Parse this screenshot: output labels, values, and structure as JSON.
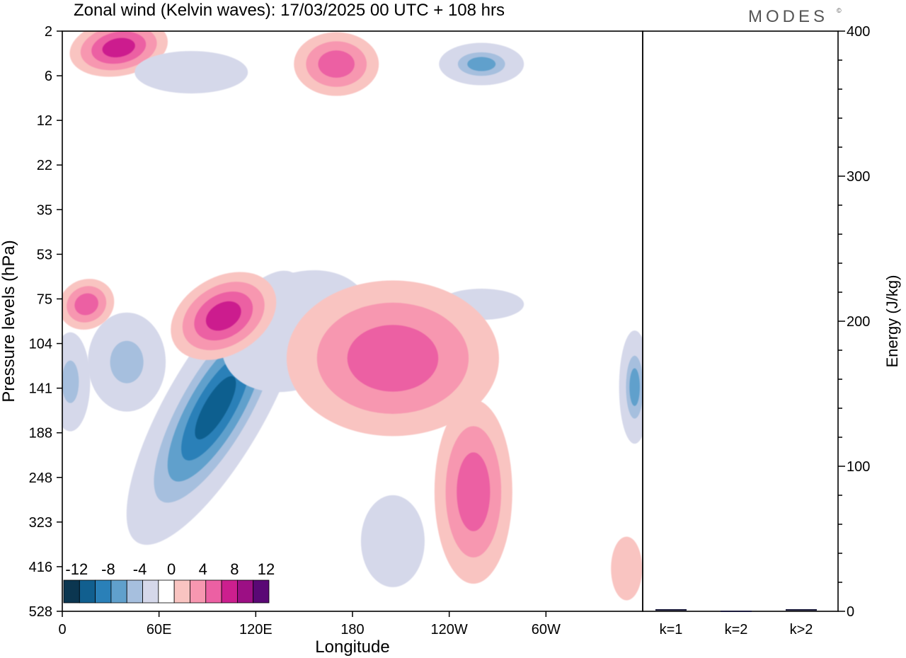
{
  "title": "Zonal wind (Kelvin waves):  17/03/2025  00 UTC  + 108 hrs",
  "brand": "MODES",
  "brand_mark": "©",
  "chart_data": [
    {
      "type": "heatmap",
      "xlabel": "Longitude",
      "ylabel": "Pressure levels (hPa)",
      "x_ticks": [
        "0",
        "60E",
        "120E",
        "180",
        "120W",
        "60W"
      ],
      "x_tick_values": [
        0,
        60,
        120,
        180,
        240,
        300
      ],
      "xlim": [
        0,
        360
      ],
      "y_ticks": [
        "2",
        "6",
        "12",
        "22",
        "35",
        "53",
        "75",
        "104",
        "141",
        "188",
        "248",
        "323",
        "416",
        "528"
      ],
      "y_scale": "log",
      "colorbar": {
        "labels": [
          "-12",
          "-8",
          "-4",
          "0",
          "4",
          "8",
          "12"
        ],
        "levels": [
          -12,
          -10,
          -8,
          -6,
          -4,
          -2,
          2,
          4,
          6,
          8,
          10,
          12
        ],
        "colors": [
          "#0b3650",
          "#115f8f",
          "#2a80b8",
          "#60a0cc",
          "#a6bfde",
          "#d5d8ea",
          "#ffffff",
          "#f9c4c1",
          "#f797b0",
          "#ec60a3",
          "#cc1f8e",
          "#9c0f84",
          "#5a0875"
        ]
      },
      "blobs": [
        {
          "lon": 95,
          "p": 160,
          "value": -12
        },
        {
          "lon": 40,
          "p": 118,
          "value": -6
        },
        {
          "lon": 5,
          "p": 135,
          "value": -6
        },
        {
          "lon": 145,
          "p": 95,
          "value": -4
        },
        {
          "lon": 260,
          "p": 78,
          "value": -2
        },
        {
          "lon": 355,
          "p": 140,
          "value": -8
        },
        {
          "lon": 205,
          "p": 115,
          "value": 6
        },
        {
          "lon": 255,
          "p": 270,
          "value": 6
        },
        {
          "lon": 100,
          "p": 85,
          "value": 8
        },
        {
          "lon": 15,
          "p": 78,
          "value": 6
        },
        {
          "lon": 35,
          "p": 3,
          "value": 8
        },
        {
          "lon": 170,
          "p": 4.5,
          "value": 6
        },
        {
          "lon": 260,
          "p": 4.5,
          "value": -8
        },
        {
          "lon": 80,
          "p": 5.5,
          "value": -4
        },
        {
          "lon": 350,
          "p": 420,
          "value": 2
        },
        {
          "lon": 205,
          "p": 360,
          "value": -4
        }
      ]
    },
    {
      "type": "bar",
      "ylabel": "Energy (J/kg)",
      "categories": [
        "k=1",
        "k=2",
        "k>2"
      ],
      "values": [
        1,
        0,
        1
      ],
      "ylim": [
        0,
        400
      ],
      "y_ticks": [
        0,
        100,
        200,
        300,
        400
      ]
    }
  ]
}
